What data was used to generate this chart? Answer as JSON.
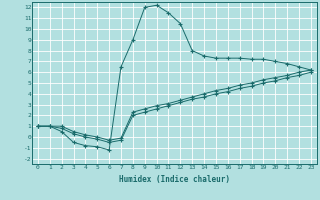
{
  "xlabel": "Humidex (Indice chaleur)",
  "background_color": "#b2e0e0",
  "grid_color": "#ffffff",
  "line_color": "#1a6b6b",
  "xlim": [
    -0.5,
    23.5
  ],
  "ylim": [
    -2.5,
    12.5
  ],
  "xticks": [
    0,
    1,
    2,
    3,
    4,
    5,
    6,
    7,
    8,
    9,
    10,
    11,
    12,
    13,
    14,
    15,
    16,
    17,
    18,
    19,
    20,
    21,
    22,
    23
  ],
  "yticks": [
    -2,
    -1,
    0,
    1,
    2,
    3,
    4,
    5,
    6,
    7,
    8,
    9,
    10,
    11,
    12
  ],
  "line1_x": [
    0,
    1,
    2,
    3,
    4,
    5,
    6,
    7,
    8,
    9,
    10,
    11,
    12,
    13,
    14,
    15,
    16,
    17,
    18,
    19,
    20,
    21,
    22,
    23
  ],
  "line1_y": [
    1,
    1,
    0.5,
    -0.5,
    -0.8,
    -0.9,
    -1.2,
    6.5,
    9.0,
    12.0,
    12.2,
    11.5,
    10.5,
    8.0,
    7.5,
    7.3,
    7.3,
    7.3,
    7.2,
    7.2,
    7.0,
    6.8,
    6.5,
    6.2
  ],
  "line2_x": [
    0,
    1,
    2,
    3,
    4,
    5,
    6,
    7,
    8,
    9,
    10,
    11,
    12,
    13,
    14,
    15,
    16,
    17,
    18,
    19,
    20,
    21,
    22,
    23
  ],
  "line2_y": [
    1.0,
    1.0,
    1.0,
    0.5,
    0.2,
    0.0,
    -0.3,
    -0.1,
    2.3,
    2.6,
    2.9,
    3.1,
    3.4,
    3.7,
    4.0,
    4.3,
    4.5,
    4.8,
    5.0,
    5.3,
    5.5,
    5.7,
    6.0,
    6.2
  ],
  "line3_x": [
    0,
    1,
    2,
    3,
    4,
    5,
    6,
    7,
    8,
    9,
    10,
    11,
    12,
    13,
    14,
    15,
    16,
    17,
    18,
    19,
    20,
    21,
    22,
    23
  ],
  "line3_y": [
    1.0,
    1.0,
    0.8,
    0.3,
    0.0,
    -0.2,
    -0.5,
    -0.3,
    2.0,
    2.3,
    2.6,
    2.9,
    3.2,
    3.5,
    3.7,
    4.0,
    4.2,
    4.5,
    4.7,
    5.0,
    5.2,
    5.5,
    5.7,
    6.0
  ]
}
